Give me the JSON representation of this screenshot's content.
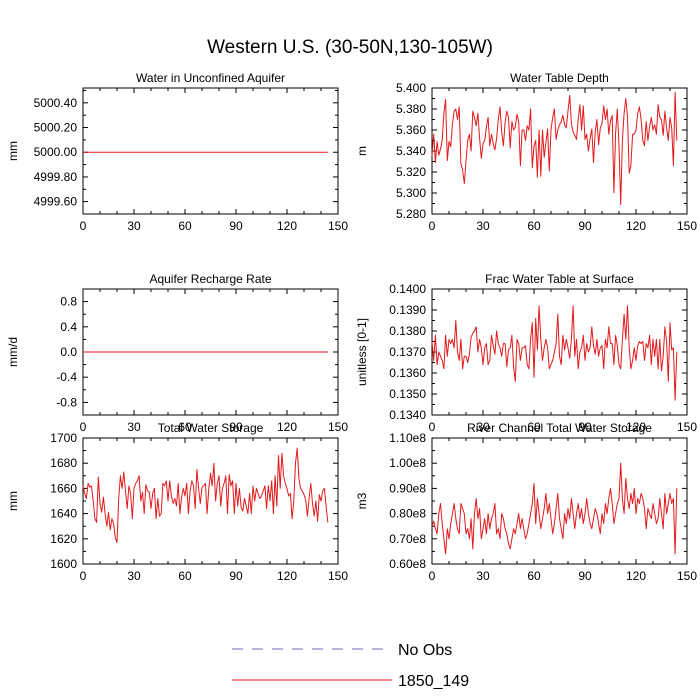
{
  "figure_title": "Western U.S. (30-50N,130-105W)",
  "legend": {
    "placement": "bottom-center",
    "items": [
      {
        "label": "No Obs",
        "color": "#6b6bb5",
        "dashed": true
      },
      {
        "label": "1850_149",
        "color": "#e31a1c",
        "dashed": false
      }
    ]
  },
  "chart_data": [
    {
      "type": "line",
      "title": "Water in Unconfined Aquifer",
      "ylabel": "mm",
      "xlim": [
        0,
        150
      ],
      "ylim": [
        4999.5,
        5000.52
      ],
      "xticks": [
        0,
        30,
        60,
        90,
        120,
        150
      ],
      "yticks": [
        {
          "value": 4999.6,
          "label": "4999.60"
        },
        {
          "value": 4999.8,
          "label": "4999.80"
        },
        {
          "value": 5000.0,
          "label": "5000.00"
        },
        {
          "value": 5000.2,
          "label": "5000.20"
        },
        {
          "value": 5000.4,
          "label": "5000.40"
        }
      ],
      "series": [
        {
          "name": "1850_149",
          "color": "#e31a1c",
          "constant": 5000.0,
          "n": 145
        }
      ]
    },
    {
      "type": "line",
      "title": "Water Table Depth",
      "ylabel": "m",
      "xlim": [
        0,
        150
      ],
      "ylim": [
        5.28,
        5.4
      ],
      "xticks": [
        0,
        30,
        60,
        90,
        120,
        150
      ],
      "yticks": [
        {
          "value": 5.28,
          "label": "5.280"
        },
        {
          "value": 5.3,
          "label": "5.300"
        },
        {
          "value": 5.32,
          "label": "5.320"
        },
        {
          "value": 5.34,
          "label": "5.340"
        },
        {
          "value": 5.36,
          "label": "5.360"
        },
        {
          "value": 5.38,
          "label": "5.380"
        },
        {
          "value": 5.4,
          "label": "5.400"
        }
      ],
      "series": [
        {
          "name": "1850_149",
          "color": "#e31a1c",
          "values": [
            5.335,
            5.356,
            5.329,
            5.349,
            5.336,
            5.342,
            5.35,
            5.376,
            5.389,
            5.331,
            5.349,
            5.344,
            5.365,
            5.378,
            5.38,
            5.37,
            5.382,
            5.328,
            5.322,
            5.309,
            5.33,
            5.35,
            5.356,
            5.34,
            5.378,
            5.372,
            5.364,
            5.376,
            5.352,
            5.333,
            5.347,
            5.35,
            5.363,
            5.372,
            5.345,
            5.356,
            5.347,
            5.341,
            5.352,
            5.37,
            5.382,
            5.358,
            5.345,
            5.367,
            5.378,
            5.372,
            5.343,
            5.368,
            5.36,
            5.363,
            5.375,
            5.368,
            5.326,
            5.36,
            5.36,
            5.35,
            5.364,
            5.36,
            5.38,
            5.324,
            5.345,
            5.35,
            5.315,
            5.36,
            5.316,
            5.36,
            5.334,
            5.348,
            5.361,
            5.321,
            5.36,
            5.372,
            5.38,
            5.351,
            5.36,
            5.365,
            5.368,
            5.374,
            5.365,
            5.362,
            5.378,
            5.393,
            5.366,
            5.358,
            5.355,
            5.351,
            5.37,
            5.384,
            5.36,
            5.383,
            5.351,
            5.356,
            5.34,
            5.352,
            5.361,
            5.329,
            5.358,
            5.37,
            5.346,
            5.362,
            5.366,
            5.383,
            5.37,
            5.38,
            5.356,
            5.369,
            5.374,
            5.3,
            5.357,
            5.38,
            5.345,
            5.289,
            5.35,
            5.376,
            5.39,
            5.373,
            5.319,
            5.326,
            5.356,
            5.356,
            5.36,
            5.376,
            5.382,
            5.37,
            5.35,
            5.345,
            5.368,
            5.35,
            5.363,
            5.372,
            5.36,
            5.365,
            5.356,
            5.384,
            5.372,
            5.37,
            5.355,
            5.378,
            5.362,
            5.35,
            5.372,
            5.362,
            5.326,
            5.396,
            5.35
          ]
        }
      ]
    },
    {
      "type": "line",
      "title": "Aquifer Recharge Rate",
      "ylabel": "mm/d",
      "xlim": [
        0,
        150
      ],
      "ylim": [
        -1.0,
        1.0
      ],
      "xticks": [
        0,
        30,
        60,
        90,
        120,
        150
      ],
      "yticks": [
        {
          "value": -0.8,
          "label": "-0.8"
        },
        {
          "value": -0.4,
          "label": "-0.4"
        },
        {
          "value": 0.0,
          "label": "0.0"
        },
        {
          "value": 0.4,
          "label": "0.4"
        },
        {
          "value": 0.8,
          "label": "0.8"
        }
      ],
      "series": [
        {
          "name": "1850_149",
          "color": "#e31a1c",
          "constant": 0.0,
          "n": 145
        }
      ]
    },
    {
      "type": "line",
      "title": "Frac Water Table at Surface",
      "ylabel": "unitless [0-1]",
      "xlim": [
        0,
        150
      ],
      "ylim": [
        0.134,
        0.14
      ],
      "xticks": [
        0,
        30,
        60,
        90,
        120,
        150
      ],
      "yticks": [
        {
          "value": 0.134,
          "label": "0.1340"
        },
        {
          "value": 0.135,
          "label": "0.1350"
        },
        {
          "value": 0.136,
          "label": "0.1360"
        },
        {
          "value": 0.137,
          "label": "0.1370"
        },
        {
          "value": 0.138,
          "label": "0.1380"
        },
        {
          "value": 0.139,
          "label": "0.1390"
        },
        {
          "value": 0.14,
          "label": "0.1400"
        }
      ],
      "series": [
        {
          "name": "1850_149",
          "color": "#e31a1c",
          "values": [
            0.1375,
            0.1366,
            0.1378,
            0.1364,
            0.137,
            0.1368,
            0.1366,
            0.1362,
            0.1378,
            0.1368,
            0.1376,
            0.1374,
            0.1376,
            0.1372,
            0.1385,
            0.137,
            0.1366,
            0.1376,
            0.1362,
            0.1368,
            0.1368,
            0.1365,
            0.1369,
            0.1377,
            0.1379,
            0.138,
            0.1382,
            0.137,
            0.1376,
            0.1372,
            0.1364,
            0.1372,
            0.1374,
            0.1364,
            0.1366,
            0.1378,
            0.1373,
            0.1369,
            0.138,
            0.1374,
            0.1372,
            0.1368,
            0.1374,
            0.1374,
            0.1363,
            0.1371,
            0.1372,
            0.1378,
            0.1363,
            0.1356,
            0.1376,
            0.1374,
            0.1366,
            0.1372,
            0.1372,
            0.1373,
            0.1364,
            0.1362,
            0.1376,
            0.1384,
            0.1358,
            0.1386,
            0.1371,
            0.1392,
            0.1376,
            0.1366,
            0.1372,
            0.1376,
            0.1372,
            0.1362,
            0.1364,
            0.1366,
            0.137,
            0.1374,
            0.1388,
            0.1368,
            0.1364,
            0.1378,
            0.1371,
            0.1376,
            0.1372,
            0.1367,
            0.1376,
            0.1392,
            0.1368,
            0.1376,
            0.1362,
            0.137,
            0.1372,
            0.1378,
            0.1366,
            0.1374,
            0.137,
            0.1372,
            0.1382,
            0.1373,
            0.1369,
            0.1376,
            0.1368,
            0.1372,
            0.1373,
            0.1362,
            0.1376,
            0.1372,
            0.1382,
            0.1374,
            0.1374,
            0.1364,
            0.1378,
            0.1373,
            0.1364,
            0.1362,
            0.1376,
            0.1388,
            0.1376,
            0.1392,
            0.1372,
            0.1362,
            0.1366,
            0.1372,
            0.1366,
            0.1373,
            0.1375,
            0.1374,
            0.1375,
            0.1366,
            0.1374,
            0.1372,
            0.1378,
            0.1364,
            0.1376,
            0.1368,
            0.1376,
            0.1362,
            0.1376,
            0.1361,
            0.1368,
            0.1382,
            0.1375,
            0.1356,
            0.1384,
            0.1371,
            0.1372,
            0.1347,
            0.137
          ]
        }
      ]
    },
    {
      "type": "line",
      "title": "Total Water Storage",
      "ylabel": "mm",
      "xlim": [
        0,
        150
      ],
      "ylim": [
        1600,
        1700
      ],
      "xticks": [
        0,
        30,
        60,
        90,
        120,
        150
      ],
      "yticks": [
        {
          "value": 1600,
          "label": "1600"
        },
        {
          "value": 1620,
          "label": "1620"
        },
        {
          "value": 1640,
          "label": "1640"
        },
        {
          "value": 1660,
          "label": "1660"
        },
        {
          "value": 1680,
          "label": "1680"
        },
        {
          "value": 1700,
          "label": "1700"
        }
      ],
      "series": [
        {
          "name": "1850_149",
          "color": "#e31a1c",
          "values": [
            1662,
            1656,
            1652,
            1664,
            1661,
            1662,
            1650,
            1636,
            1633,
            1669,
            1648,
            1641,
            1653,
            1640,
            1630,
            1641,
            1627,
            1636,
            1632,
            1621,
            1617,
            1652,
            1670,
            1660,
            1673,
            1658,
            1644,
            1662,
            1656,
            1636,
            1660,
            1664,
            1666,
            1670,
            1650,
            1657,
            1640,
            1663,
            1658,
            1657,
            1644,
            1656,
            1660,
            1636,
            1652,
            1638,
            1640,
            1664,
            1662,
            1666,
            1650,
            1666,
            1654,
            1648,
            1652,
            1646,
            1664,
            1640,
            1653,
            1660,
            1654,
            1664,
            1640,
            1658,
            1666,
            1662,
            1644,
            1675,
            1660,
            1648,
            1661,
            1662,
            1664,
            1640,
            1660,
            1672,
            1662,
            1680,
            1650,
            1664,
            1670,
            1646,
            1660,
            1664,
            1670,
            1640,
            1671,
            1662,
            1666,
            1640,
            1664,
            1646,
            1660,
            1645,
            1642,
            1652,
            1646,
            1640,
            1656,
            1640,
            1662,
            1650,
            1660,
            1656,
            1652,
            1654,
            1658,
            1662,
            1644,
            1662,
            1650,
            1666,
            1640,
            1670,
            1646,
            1686,
            1660,
            1688,
            1670,
            1664,
            1660,
            1654,
            1656,
            1636,
            1650,
            1680,
            1692,
            1668,
            1660,
            1658,
            1655,
            1651,
            1638,
            1652,
            1664,
            1648,
            1638,
            1650,
            1634,
            1655,
            1650,
            1658,
            1660,
            1646,
            1633
          ]
        }
      ]
    },
    {
      "type": "line",
      "title": "River Channel Total Water Storage",
      "ylabel": "m3",
      "xlim": [
        0,
        150
      ],
      "ylim": [
        60000000,
        110000000
      ],
      "xticks": [
        0,
        30,
        60,
        90,
        120,
        150
      ],
      "yticks": [
        {
          "value": 60000000,
          "label": "0.60e8"
        },
        {
          "value": 70000000,
          "label": "0.70e8"
        },
        {
          "value": 80000000,
          "label": "0.80e8"
        },
        {
          "value": 90000000,
          "label": "0.90e8"
        },
        {
          "value": 100000000,
          "label": "1.00e8"
        },
        {
          "value": 110000000,
          "label": "1.10e8"
        }
      ],
      "series": [
        {
          "name": "1850_149",
          "color": "#e31a1c",
          "values": [
            75000000,
            77000000,
            74000000,
            72000000,
            80000000,
            84000000,
            76000000,
            70000000,
            64000000,
            74000000,
            70000000,
            76000000,
            80000000,
            84000000,
            78000000,
            74000000,
            72000000,
            84000000,
            82000000,
            80000000,
            72000000,
            74000000,
            70000000,
            78000000,
            66000000,
            80000000,
            86000000,
            78000000,
            82000000,
            70000000,
            74000000,
            78000000,
            72000000,
            80000000,
            74000000,
            78000000,
            80000000,
            84000000,
            72000000,
            74000000,
            70000000,
            80000000,
            78000000,
            74000000,
            72000000,
            68000000,
            66000000,
            70000000,
            74000000,
            72000000,
            76000000,
            80000000,
            74000000,
            78000000,
            74000000,
            70000000,
            72000000,
            76000000,
            80000000,
            84000000,
            92000000,
            76000000,
            86000000,
            80000000,
            74000000,
            78000000,
            82000000,
            88000000,
            80000000,
            84000000,
            78000000,
            72000000,
            76000000,
            82000000,
            88000000,
            78000000,
            74000000,
            70000000,
            80000000,
            76000000,
            82000000,
            78000000,
            86000000,
            80000000,
            74000000,
            80000000,
            84000000,
            78000000,
            82000000,
            76000000,
            80000000,
            86000000,
            80000000,
            76000000,
            74000000,
            78000000,
            82000000,
            80000000,
            76000000,
            72000000,
            80000000,
            76000000,
            84000000,
            80000000,
            86000000,
            90000000,
            84000000,
            76000000,
            80000000,
            84000000,
            86000000,
            100000000,
            86000000,
            80000000,
            94000000,
            86000000,
            82000000,
            88000000,
            84000000,
            90000000,
            80000000,
            86000000,
            84000000,
            88000000,
            86000000,
            82000000,
            74000000,
            82000000,
            80000000,
            78000000,
            84000000,
            80000000,
            76000000,
            78000000,
            86000000,
            80000000,
            74000000,
            88000000,
            80000000,
            84000000,
            88000000,
            84000000,
            86000000,
            64000000,
            90000000
          ]
        }
      ]
    }
  ]
}
